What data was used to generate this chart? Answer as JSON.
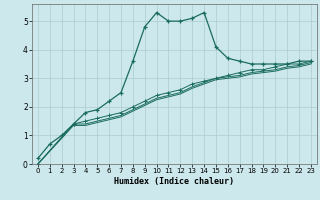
{
  "title": "",
  "xlabel": "Humidex (Indice chaleur)",
  "background_color": "#cce8ec",
  "grid_color": "#aacccc",
  "line_color": "#1a6b60",
  "xlim": [
    -0.5,
    23.5
  ],
  "ylim": [
    0,
    5.6
  ],
  "xticks": [
    0,
    1,
    2,
    3,
    4,
    5,
    6,
    7,
    8,
    9,
    10,
    11,
    12,
    13,
    14,
    15,
    16,
    17,
    18,
    19,
    20,
    21,
    22,
    23
  ],
  "yticks": [
    0,
    1,
    2,
    3,
    4,
    5
  ],
  "line1_x": [
    0,
    1,
    2,
    3,
    4,
    5,
    6,
    7,
    8,
    9,
    10,
    11,
    12,
    13,
    14,
    15,
    16,
    17,
    18,
    19,
    20,
    21,
    22,
    23
  ],
  "line1_y": [
    0.2,
    0.7,
    1.0,
    1.4,
    1.8,
    1.9,
    2.2,
    2.5,
    3.6,
    4.8,
    5.3,
    5.0,
    5.0,
    5.1,
    5.3,
    4.1,
    3.7,
    3.6,
    3.5,
    3.5,
    3.5,
    3.5,
    3.6,
    3.6
  ],
  "line2_x": [
    0,
    3,
    4,
    5,
    6,
    7,
    8,
    9,
    10,
    11,
    12,
    13,
    14,
    15,
    16,
    17,
    18,
    19,
    20,
    21,
    22,
    23
  ],
  "line2_y": [
    0.0,
    1.4,
    1.5,
    1.6,
    1.7,
    1.8,
    2.0,
    2.2,
    2.4,
    2.5,
    2.6,
    2.8,
    2.9,
    3.0,
    3.1,
    3.2,
    3.3,
    3.3,
    3.4,
    3.5,
    3.5,
    3.6
  ],
  "line3_x": [
    0,
    3,
    4,
    5,
    6,
    7,
    8,
    9,
    10,
    11,
    12,
    13,
    14,
    15,
    16,
    17,
    18,
    19,
    20,
    21,
    22,
    23
  ],
  "line3_y": [
    0.0,
    1.4,
    1.4,
    1.5,
    1.6,
    1.7,
    1.9,
    2.1,
    2.3,
    2.4,
    2.5,
    2.7,
    2.85,
    3.0,
    3.05,
    3.1,
    3.2,
    3.25,
    3.3,
    3.4,
    3.45,
    3.55
  ],
  "line4_x": [
    0,
    3,
    4,
    5,
    6,
    7,
    8,
    9,
    10,
    11,
    12,
    13,
    14,
    15,
    16,
    17,
    18,
    19,
    20,
    21,
    22,
    23
  ],
  "line4_y": [
    0.0,
    1.35,
    1.35,
    1.45,
    1.55,
    1.65,
    1.85,
    2.05,
    2.25,
    2.35,
    2.45,
    2.65,
    2.8,
    2.95,
    3.0,
    3.05,
    3.15,
    3.2,
    3.25,
    3.35,
    3.4,
    3.5
  ]
}
